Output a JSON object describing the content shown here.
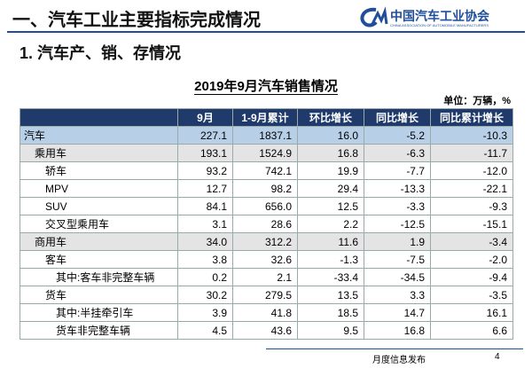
{
  "header": {
    "title": "一、汽车工业主要指标完成情况",
    "org_name": "中国汽车工业协会",
    "org_name_en": "CHINA ASSOCIATION OF AUTOMOBILE MANUFACTURERS"
  },
  "section_title": "1. 汽车产、销、存情况",
  "table": {
    "title": "2019年9月汽车销售情况",
    "unit": "单位：万辆，%",
    "columns": [
      "9月",
      "1-9月累计",
      "环比增长",
      "同比增长",
      "同比累计增长"
    ],
    "rows": [
      [
        "汽车",
        "227.1",
        "1837.1",
        "16.0",
        "-5.2",
        "-10.3"
      ],
      [
        "乘用车",
        "193.1",
        "1524.9",
        "16.8",
        "-6.3",
        "-11.7"
      ],
      [
        "轿车",
        "93.2",
        "742.1",
        "19.9",
        "-7.7",
        "-12.0"
      ],
      [
        "MPV",
        "12.7",
        "98.2",
        "29.4",
        "-13.3",
        "-22.1"
      ],
      [
        "SUV",
        "84.1",
        "656.0",
        "12.5",
        "-3.3",
        "-9.3"
      ],
      [
        "交叉型乘用车",
        "3.1",
        "28.6",
        "2.2",
        "-12.5",
        "-15.1"
      ],
      [
        "商用车",
        "34.0",
        "312.2",
        "11.6",
        "1.9",
        "-3.4"
      ],
      [
        "客车",
        "3.8",
        "32.6",
        "-1.3",
        "-7.5",
        "-2.0"
      ],
      [
        "其中:客车非完整车辆",
        "0.2",
        "2.1",
        "-33.4",
        "-34.5",
        "-9.4"
      ],
      [
        "货车",
        "30.2",
        "279.5",
        "13.5",
        "3.3",
        "-3.5"
      ],
      [
        "其中:半挂牵引车",
        "3.9",
        "41.8",
        "18.5",
        "14.7",
        "16.1"
      ],
      [
        "货车非完整车辆",
        "4.5",
        "43.6",
        "9.5",
        "16.8",
        "6.6"
      ]
    ]
  },
  "footer": {
    "text": "月度信息发布",
    "page": "4"
  }
}
